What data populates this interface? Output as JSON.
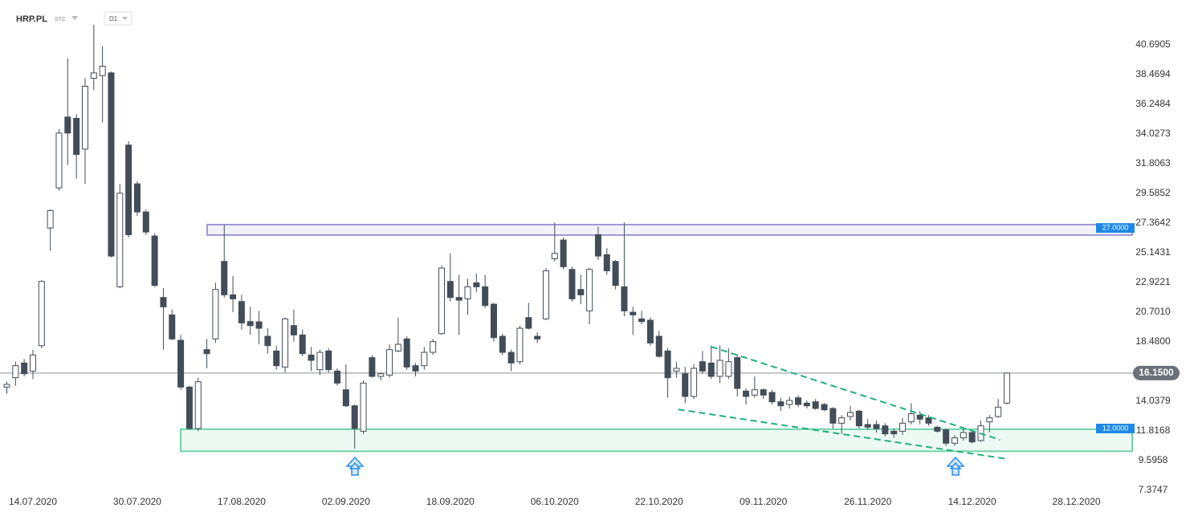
{
  "chart_data": {
    "type": "candlestick",
    "title": "HRP.PL",
    "subtitle": "STC",
    "interval": "D1",
    "up_color": "#ffffff",
    "down_color": "#434d58",
    "wick_color": "#434d58",
    "categories": [
      null,
      null,
      null,
      "14.07.2020",
      null,
      null,
      null,
      null,
      null,
      null,
      null,
      null,
      null,
      null,
      null,
      "30.07.2020",
      null,
      null,
      null,
      null,
      null,
      null,
      null,
      null,
      null,
      null,
      null,
      "17.08.2020",
      null,
      null,
      null,
      null,
      null,
      null,
      null,
      null,
      null,
      null,
      null,
      "02.09.2020",
      null,
      null,
      null,
      null,
      null,
      null,
      null,
      null,
      null,
      null,
      null,
      "18.09.2020",
      null,
      null,
      null,
      null,
      null,
      null,
      null,
      null,
      null,
      null,
      null,
      "06.10.2020",
      null,
      null,
      null,
      null,
      null,
      null,
      null,
      null,
      null,
      null,
      null,
      "22.10.2020",
      null,
      null,
      null,
      null,
      null,
      null,
      null,
      null,
      null,
      null,
      null,
      "09.11.2020",
      null,
      null,
      null,
      null,
      null,
      null,
      null,
      null,
      null,
      null,
      null,
      "26.11.2020",
      null,
      null,
      null,
      null,
      null,
      null,
      null,
      null,
      null,
      null,
      null,
      "14.12.2020",
      null,
      null,
      null,
      null,
      null,
      null,
      null,
      null,
      null,
      null,
      null,
      "28.12.2020"
    ],
    "open": [
      15.1,
      15.8,
      16.9,
      16.3,
      18.2,
      27.0,
      30.0,
      35.3,
      35.2,
      32.9,
      38.2,
      38.4,
      38.6,
      22.6,
      33.2,
      30.3,
      28.2,
      26.4,
      21.8,
      20.5,
      18.6,
      15.1,
      12.0,
      17.9,
      18.7,
      24.5,
      22.0,
      21.5,
      20.0,
      19.98,
      18.9,
      17.8,
      16.6,
      19.7,
      19.0,
      17.5,
      16.4,
      17.8,
      16.3,
      14.9,
      13.7,
      11.8,
      17.3,
      15.9,
      16.0,
      17.8,
      18.7,
      16.7,
      16.7,
      17.7,
      19.1,
      23.0,
      21.8,
      21.7,
      22.9,
      22.6,
      21.3,
      18.9,
      17.7,
      17.0,
      20.3,
      18.9,
      20.2,
      24.7,
      26.1,
      23.9,
      22.4,
      20.8,
      26.5,
      25.0,
      24.5,
      22.6,
      20.7,
      20.2,
      20.1,
      18.9,
      17.8,
      16.3,
      16.1,
      14.4,
      17.0,
      16.9,
      15.9,
      15.9,
      17.3,
      14.8,
      14.5,
      14.9,
      14.7,
      14.0,
      13.8,
      14.3,
      13.9,
      14.0,
      13.8,
      13.5,
      12.4,
      12.9,
      13.3,
      12.3,
      12.3,
      12.2,
      11.8,
      11.8,
      12.5,
      13.0,
      12.8,
      12.1,
      11.9,
      10.9,
      11.3,
      11.7,
      11.1,
      12.5,
      12.9,
      13.9,
      null,
      null,
      null,
      null,
      null,
      null,
      null,
      null
    ],
    "high": [
      15.5,
      17.0,
      17.2,
      17.9,
      23.1,
      28.4,
      34.4,
      39.7,
      35.5,
      38.2,
      42.2,
      40.6,
      38.7,
      30.3,
      33.5,
      30.5,
      28.4,
      26.6,
      22.5,
      20.9,
      19.0,
      15.2,
      15.8,
      18.7,
      22.9,
      27.25,
      23.4,
      22.0,
      21.1,
      20.8,
      19.5,
      18.2,
      20.3,
      20.9,
      19.4,
      18.1,
      17.9,
      18.0,
      16.5,
      16.8,
      13.8,
      15.6,
      17.5,
      16.2,
      18.3,
      20.3,
      18.9,
      16.9,
      18.1,
      18.7,
      24.2,
      25.1,
      23.5,
      23.2,
      23.6,
      23.5,
      21.4,
      19.1,
      17.9,
      19.7,
      21.4,
      19.2,
      24.0,
      27.4,
      26.3,
      24.1,
      23.5,
      24.0,
      27.1,
      25.5,
      24.6,
      27.4,
      21.1,
      20.8,
      20.3,
      19.3,
      18.0,
      17.0,
      16.6,
      16.8,
      17.8,
      18.2,
      18.2,
      18.0,
      17.5,
      15.0,
      15.9,
      15.0,
      14.9,
      14.3,
      14.4,
      14.5,
      14.1,
      14.2,
      13.9,
      13.6,
      13.0,
      13.7,
      13.4,
      12.7,
      12.6,
      12.4,
      12.0,
      12.8,
      13.9,
      13.3,
      13.0,
      12.2,
      12.0,
      11.5,
      12.0,
      11.8,
      12.6,
      13.0,
      14.2,
      16.2,
      null,
      null,
      null,
      null,
      null,
      null,
      null,
      null
    ],
    "low": [
      14.6,
      15.2,
      15.9,
      15.7,
      18.0,
      25.3,
      29.8,
      31.7,
      30.7,
      30.3,
      37.3,
      34.9,
      24.8,
      22.5,
      26.3,
      27.9,
      26.5,
      22.6,
      17.9,
      18.6,
      14.9,
      11.9,
      11.8,
      16.5,
      18.4,
      21.8,
      20.7,
      19.4,
      19.0,
      18.3,
      17.6,
      16.4,
      16.2,
      18.5,
      17.4,
      16.3,
      16.0,
      16.2,
      15.2,
      13.6,
      10.5,
      11.6,
      15.8,
      15.6,
      15.8,
      17.7,
      16.4,
      15.9,
      16.4,
      17.5,
      19.0,
      21.5,
      19.0,
      20.5,
      22.2,
      21.0,
      18.5,
      17.5,
      16.3,
      16.8,
      19.4,
      18.4,
      20.1,
      24.5,
      23.9,
      21.5,
      21.3,
      19.8,
      24.6,
      23.5,
      22.4,
      20.4,
      19.0,
      19.8,
      18.2,
      17.3,
      14.3,
      15.8,
      13.9,
      14.2,
      16.1,
      15.7,
      15.4,
      15.7,
      14.4,
      13.8,
      14.3,
      14.2,
      13.8,
      13.3,
      13.5,
      13.6,
      13.5,
      13.4,
      13.3,
      12.0,
      11.6,
      12.6,
      12.0,
      11.9,
      11.7,
      11.4,
      11.3,
      11.5,
      12.3,
      12.3,
      12.2,
      11.7,
      10.7,
      10.7,
      11.1,
      10.9,
      11.0,
      11.7,
      12.8,
      13.8,
      null,
      null,
      null,
      null,
      null,
      null,
      null,
      null
    ],
    "close": [
      15.3,
      16.7,
      16.1,
      17.5,
      23.0,
      28.3,
      34.1,
      34.1,
      32.5,
      37.6,
      38.6,
      39.1,
      24.9,
      29.6,
      26.5,
      28.2,
      26.7,
      22.7,
      21.1,
      18.7,
      15.1,
      12.0,
      15.5,
      17.6,
      22.4,
      22.0,
      21.7,
      19.9,
      19.7,
      19.5,
      18.2,
      16.7,
      20.2,
      19.0,
      17.6,
      17.1,
      17.7,
      16.4,
      15.4,
      13.7,
      12.0,
      15.4,
      15.9,
      16.1,
      17.9,
      18.3,
      16.6,
      16.3,
      17.7,
      18.5,
      24.0,
      21.8,
      21.6,
      22.6,
      22.6,
      21.2,
      18.8,
      17.7,
      16.9,
      19.5,
      19.5,
      18.7,
      23.8,
      25.1,
      24.1,
      21.7,
      22.0,
      23.9,
      24.9,
      23.8,
      22.7,
      20.8,
      20.5,
      20.0,
      18.4,
      17.4,
      15.8,
      16.5,
      14.4,
      16.5,
      16.3,
      15.9,
      17.1,
      17.0,
      15.0,
      14.4,
      14.9,
      14.5,
      14.0,
      13.7,
      14.1,
      13.8,
      13.7,
      13.5,
      13.4,
      12.4,
      12.8,
      13.2,
      12.2,
      12.1,
      12.0,
      11.6,
      11.6,
      12.4,
      13.1,
      12.7,
      12.4,
      11.8,
      10.9,
      11.3,
      11.7,
      11.0,
      12.2,
      12.8,
      13.6,
      16.15,
      null,
      null,
      null,
      null,
      null,
      null,
      null,
      null
    ],
    "ylim": [
      7.318,
      44.052
    ],
    "yticks": [
      40.6905,
      38.4694,
      36.2484,
      34.0273,
      31.8063,
      29.5852,
      27.3642,
      25.1431,
      22.9221,
      {
        "value": 20.701,
        "label": "20.7010"
      },
      {
        "value": 18.48,
        "label": "18.4800"
      },
      14.0379,
      11.8168,
      9.5958,
      7.3747
    ],
    "last_price": {
      "value": 16.15,
      "label": "16.1500"
    },
    "zones": [
      {
        "top": 27.25,
        "bottom": 26.47,
        "level": {
          "value": 27,
          "label": "27.0000"
        },
        "color": "#9f98d6"
      },
      {
        "top": 11.95,
        "bottom": 10.3,
        "level": {
          "value": 12,
          "label": "12.0000"
        },
        "color": "#6fd3a8"
      }
    ],
    "trendlines": [
      {
        "x": [
          81,
          114.2
        ],
        "values": [
          18.12,
          11.16
        ],
        "color": "#22b07a"
      },
      {
        "x": [
          77.2,
          115.2
        ],
        "values": [
          13.43,
          9.71
        ],
        "color": "#22b07a"
      }
    ]
  }
}
